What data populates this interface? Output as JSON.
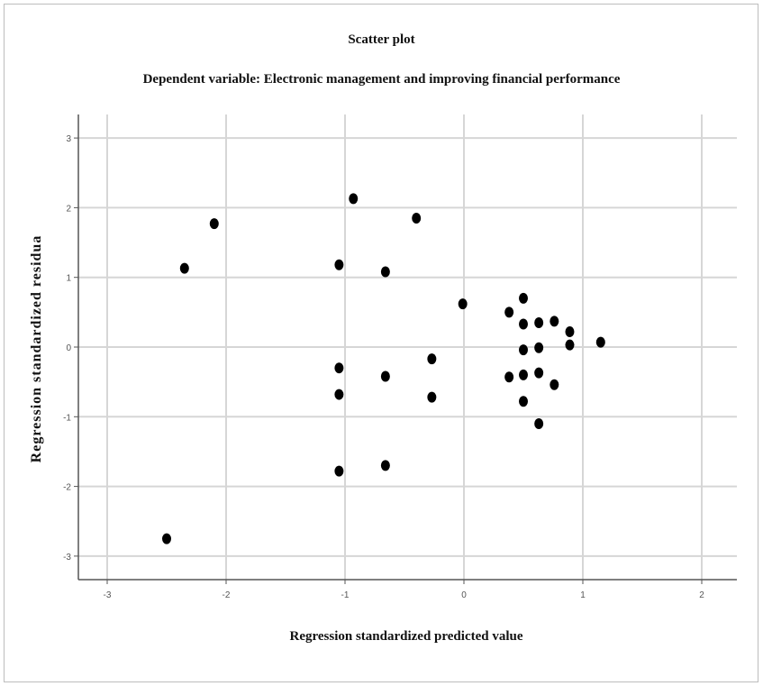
{
  "chart_data": {
    "type": "scatter",
    "title": "Scatter plot",
    "subtitle": "Dependent variable: Electronic management and improving financial performance",
    "xlabel": "Regression standardized predicted value",
    "ylabel": "Regression standardized residua",
    "xlim": [
      -3.3,
      2.3
    ],
    "ylim": [
      -3.3,
      3.3
    ],
    "xticks": [
      -3,
      -2,
      -1,
      0,
      1,
      2
    ],
    "yticks": [
      3,
      2,
      1,
      0,
      -1,
      -2,
      -3
    ],
    "grid": true,
    "marker_color": "#000000",
    "series": [
      {
        "points": [
          {
            "x": -2.5,
            "y": -2.75
          },
          {
            "x": -2.35,
            "y": 1.13
          },
          {
            "x": -2.1,
            "y": 1.77
          },
          {
            "x": -1.05,
            "y": 1.18
          },
          {
            "x": -1.05,
            "y": -0.3
          },
          {
            "x": -1.05,
            "y": -0.68
          },
          {
            "x": -1.05,
            "y": -1.78
          },
          {
            "x": -0.93,
            "y": 2.13
          },
          {
            "x": -0.66,
            "y": 1.08
          },
          {
            "x": -0.66,
            "y": -0.42
          },
          {
            "x": -0.66,
            "y": -1.7
          },
          {
            "x": -0.4,
            "y": 1.85
          },
          {
            "x": -0.27,
            "y": -0.17
          },
          {
            "x": -0.27,
            "y": -0.72
          },
          {
            "x": -0.01,
            "y": 0.62
          },
          {
            "x": 0.38,
            "y": 0.5
          },
          {
            "x": 0.38,
            "y": -0.43
          },
          {
            "x": 0.5,
            "y": 0.7
          },
          {
            "x": 0.5,
            "y": 0.33
          },
          {
            "x": 0.5,
            "y": -0.04
          },
          {
            "x": 0.5,
            "y": -0.4
          },
          {
            "x": 0.5,
            "y": -0.78
          },
          {
            "x": 0.63,
            "y": 0.35
          },
          {
            "x": 0.63,
            "y": -0.01
          },
          {
            "x": 0.63,
            "y": -0.37
          },
          {
            "x": 0.63,
            "y": -1.1
          },
          {
            "x": 0.76,
            "y": 0.37
          },
          {
            "x": 0.76,
            "y": -0.54
          },
          {
            "x": 0.89,
            "y": 0.22
          },
          {
            "x": 0.89,
            "y": 0.03
          },
          {
            "x": 1.15,
            "y": 0.07
          }
        ]
      }
    ]
  }
}
